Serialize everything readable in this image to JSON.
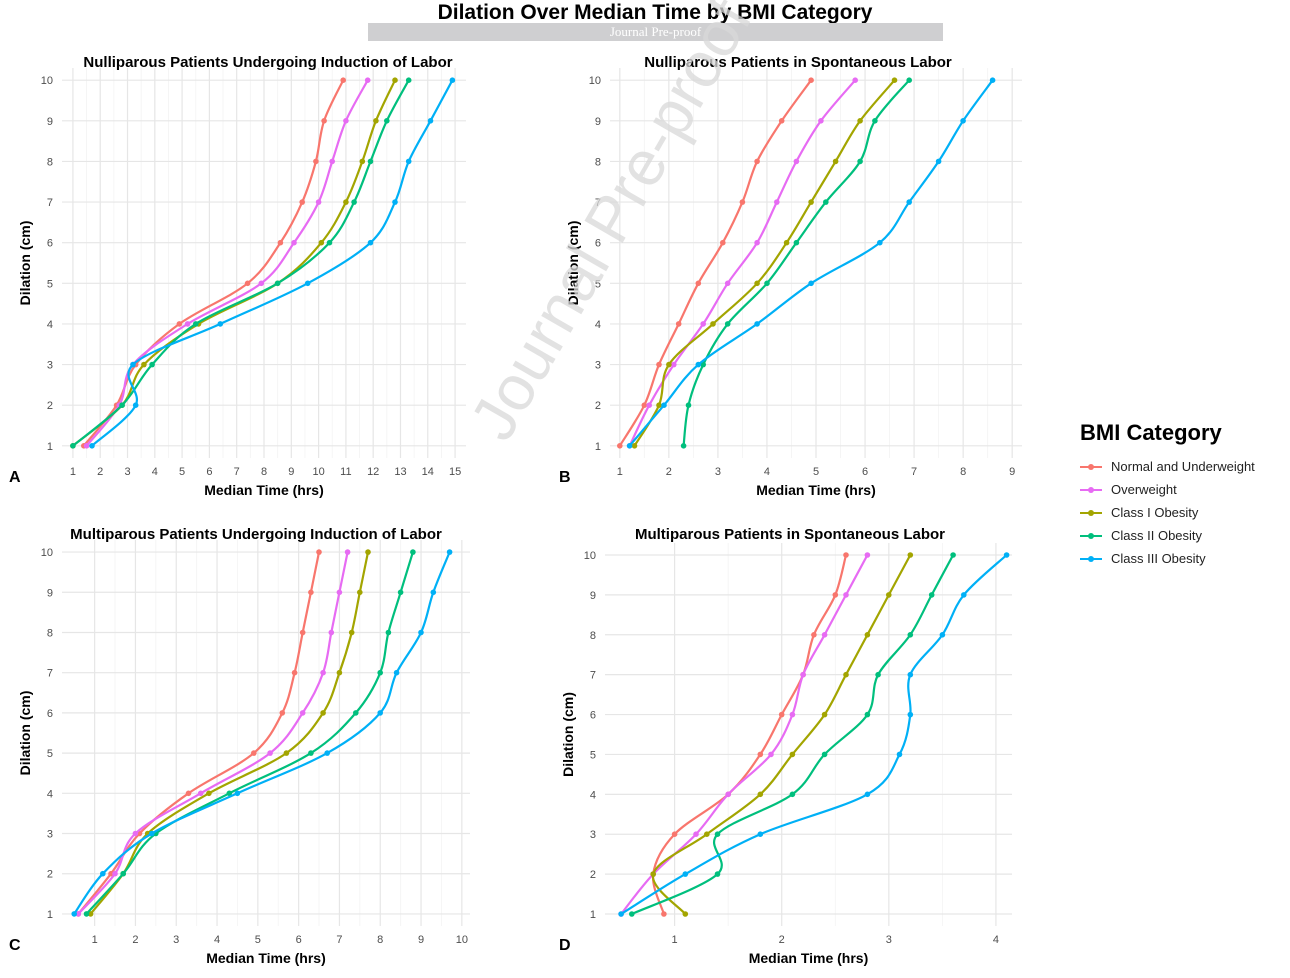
{
  "figure": {
    "title": "Dilation Over Median Time by BMI Category",
    "banner": "Journal Pre-proof",
    "watermark": "Journal Pre-proof"
  },
  "legend": {
    "title": "BMI Category",
    "items": [
      {
        "label": "Normal and Underweight",
        "color": "#f8766d"
      },
      {
        "label": "Overweight",
        "color": "#e76bf3"
      },
      {
        "label": "Class I Obesity",
        "color": "#a3a500"
      },
      {
        "label": "Class II Obesity",
        "color": "#00bf7d"
      },
      {
        "label": "Class III Obesity",
        "color": "#00b0f6"
      }
    ]
  },
  "chart_data": [
    {
      "panel": "A",
      "type": "line",
      "title": "Nulliparous Patients Undergoing Induction of Labor",
      "xlabel": "Median Time (hrs)",
      "ylabel": "Dilation (cm)",
      "xlim": [
        0.6,
        15.4
      ],
      "ylim": [
        0.7,
        10.3
      ],
      "xticks": [
        1,
        2,
        3,
        4,
        5,
        6,
        7,
        8,
        9,
        10,
        11,
        12,
        13,
        14,
        15
      ],
      "yticks": [
        1,
        2,
        3,
        4,
        5,
        6,
        7,
        8,
        9,
        10
      ],
      "series": [
        {
          "name": "Normal and Underweight",
          "points": [
            [
              1.4,
              1
            ],
            [
              2.6,
              2
            ],
            [
              3.3,
              3
            ],
            [
              4.9,
              4
            ],
            [
              7.4,
              5
            ],
            [
              8.6,
              6
            ],
            [
              9.4,
              7
            ],
            [
              9.9,
              8
            ],
            [
              10.2,
              9
            ],
            [
              10.9,
              10
            ]
          ]
        },
        {
          "name": "Overweight",
          "points": [
            [
              1.5,
              1
            ],
            [
              2.7,
              2
            ],
            [
              3.2,
              3
            ],
            [
              5.2,
              4
            ],
            [
              7.9,
              5
            ],
            [
              9.1,
              6
            ],
            [
              10.0,
              7
            ],
            [
              10.5,
              8
            ],
            [
              11.0,
              9
            ],
            [
              11.8,
              10
            ]
          ]
        },
        {
          "name": "Class I Obesity",
          "points": [
            [
              1.0,
              1
            ],
            [
              2.8,
              2
            ],
            [
              3.6,
              3
            ],
            [
              5.6,
              4
            ],
            [
              8.5,
              5
            ],
            [
              10.1,
              6
            ],
            [
              11.0,
              7
            ],
            [
              11.6,
              8
            ],
            [
              12.1,
              9
            ],
            [
              12.8,
              10
            ]
          ]
        },
        {
          "name": "Class II Obesity",
          "points": [
            [
              1.0,
              1
            ],
            [
              2.8,
              2
            ],
            [
              3.9,
              3
            ],
            [
              5.5,
              4
            ],
            [
              8.5,
              5
            ],
            [
              10.4,
              6
            ],
            [
              11.3,
              7
            ],
            [
              11.9,
              8
            ],
            [
              12.5,
              9
            ],
            [
              13.3,
              10
            ]
          ]
        },
        {
          "name": "Class III Obesity",
          "points": [
            [
              1.7,
              1
            ],
            [
              3.3,
              2
            ],
            [
              3.2,
              3
            ],
            [
              6.4,
              4
            ],
            [
              9.6,
              5
            ],
            [
              11.9,
              6
            ],
            [
              12.8,
              7
            ],
            [
              13.3,
              8
            ],
            [
              14.1,
              9
            ],
            [
              14.9,
              10
            ]
          ]
        }
      ]
    },
    {
      "panel": "B",
      "type": "line",
      "title": "Nulliparous Patients in Spontaneous Labor",
      "xlabel": "Median Time (hrs)",
      "ylabel": "Dilation (cm)",
      "xlim": [
        0.8,
        9.2
      ],
      "ylim": [
        0.7,
        10.3
      ],
      "xticks": [
        1,
        2,
        3,
        4,
        5,
        6,
        7,
        8,
        9
      ],
      "yticks": [
        1,
        2,
        3,
        4,
        5,
        6,
        7,
        8,
        9,
        10
      ],
      "series": [
        {
          "name": "Normal and Underweight",
          "points": [
            [
              1.0,
              1
            ],
            [
              1.5,
              2
            ],
            [
              1.8,
              3
            ],
            [
              2.2,
              4
            ],
            [
              2.6,
              5
            ],
            [
              3.1,
              6
            ],
            [
              3.5,
              7
            ],
            [
              3.8,
              8
            ],
            [
              4.3,
              9
            ],
            [
              4.9,
              10
            ]
          ]
        },
        {
          "name": "Overweight",
          "points": [
            [
              1.2,
              1
            ],
            [
              1.6,
              2
            ],
            [
              2.1,
              3
            ],
            [
              2.7,
              4
            ],
            [
              3.2,
              5
            ],
            [
              3.8,
              6
            ],
            [
              4.2,
              7
            ],
            [
              4.6,
              8
            ],
            [
              5.1,
              9
            ],
            [
              5.8,
              10
            ]
          ]
        },
        {
          "name": "Class I Obesity",
          "points": [
            [
              1.3,
              1
            ],
            [
              1.8,
              2
            ],
            [
              2.0,
              3
            ],
            [
              2.9,
              4
            ],
            [
              3.8,
              5
            ],
            [
              4.4,
              6
            ],
            [
              4.9,
              7
            ],
            [
              5.4,
              8
            ],
            [
              5.9,
              9
            ],
            [
              6.6,
              10
            ]
          ]
        },
        {
          "name": "Class II Obesity",
          "points": [
            [
              2.3,
              1
            ],
            [
              2.4,
              2
            ],
            [
              2.7,
              3
            ],
            [
              3.2,
              4
            ],
            [
              4.0,
              5
            ],
            [
              4.6,
              6
            ],
            [
              5.2,
              7
            ],
            [
              5.9,
              8
            ],
            [
              6.2,
              9
            ],
            [
              6.9,
              10
            ]
          ]
        },
        {
          "name": "Class III Obesity",
          "points": [
            [
              1.2,
              1
            ],
            [
              1.9,
              2
            ],
            [
              2.6,
              3
            ],
            [
              3.8,
              4
            ],
            [
              4.9,
              5
            ],
            [
              6.3,
              6
            ],
            [
              6.9,
              7
            ],
            [
              7.5,
              8
            ],
            [
              8.0,
              9
            ],
            [
              8.6,
              10
            ]
          ]
        }
      ]
    },
    {
      "panel": "C",
      "type": "line",
      "title": "Multiparous Patients Undergoing Induction of Labor",
      "xlabel": "Median Time (hrs)",
      "ylabel": "Dilation (cm)",
      "xlim": [
        0.2,
        10.2
      ],
      "ylim": [
        0.7,
        10.3
      ],
      "xticks": [
        1,
        2,
        3,
        4,
        5,
        6,
        7,
        8,
        9,
        10
      ],
      "yticks": [
        1,
        2,
        3,
        4,
        5,
        6,
        7,
        8,
        9,
        10
      ],
      "series": [
        {
          "name": "Normal and Underweight",
          "points": [
            [
              0.6,
              1
            ],
            [
              1.4,
              2
            ],
            [
              2.1,
              3
            ],
            [
              3.3,
              4
            ],
            [
              4.9,
              5
            ],
            [
              5.6,
              6
            ],
            [
              5.9,
              7
            ],
            [
              6.1,
              8
            ],
            [
              6.3,
              9
            ],
            [
              6.5,
              10
            ]
          ]
        },
        {
          "name": "Overweight",
          "points": [
            [
              0.6,
              1
            ],
            [
              1.5,
              2
            ],
            [
              2.0,
              3
            ],
            [
              3.6,
              4
            ],
            [
              5.3,
              5
            ],
            [
              6.1,
              6
            ],
            [
              6.6,
              7
            ],
            [
              6.8,
              8
            ],
            [
              7.0,
              9
            ],
            [
              7.2,
              10
            ]
          ]
        },
        {
          "name": "Class I Obesity",
          "points": [
            [
              0.9,
              1
            ],
            [
              1.7,
              2
            ],
            [
              2.3,
              3
            ],
            [
              3.8,
              4
            ],
            [
              5.7,
              5
            ],
            [
              6.6,
              6
            ],
            [
              7.0,
              7
            ],
            [
              7.3,
              8
            ],
            [
              7.5,
              9
            ],
            [
              7.7,
              10
            ]
          ]
        },
        {
          "name": "Class II Obesity",
          "points": [
            [
              0.8,
              1
            ],
            [
              1.7,
              2
            ],
            [
              2.5,
              3
            ],
            [
              4.3,
              4
            ],
            [
              6.3,
              5
            ],
            [
              7.4,
              6
            ],
            [
              8.0,
              7
            ],
            [
              8.2,
              8
            ],
            [
              8.5,
              9
            ],
            [
              8.8,
              10
            ]
          ]
        },
        {
          "name": "Class III Obesity",
          "points": [
            [
              0.5,
              1
            ],
            [
              1.2,
              2
            ],
            [
              2.4,
              3
            ],
            [
              4.5,
              4
            ],
            [
              6.7,
              5
            ],
            [
              8.0,
              6
            ],
            [
              8.4,
              7
            ],
            [
              9.0,
              8
            ],
            [
              9.3,
              9
            ],
            [
              9.7,
              10
            ]
          ]
        }
      ]
    },
    {
      "panel": "D",
      "type": "line",
      "title": "Multiparous Patients in Spontaneous Labor",
      "xlabel": "Median Time (hrs)",
      "ylabel": "Dilation (cm)",
      "xlim": [
        0.35,
        4.15
      ],
      "ylim": [
        0.7,
        10.3
      ],
      "xticks": [
        1,
        2,
        3,
        4
      ],
      "yticks": [
        1,
        2,
        3,
        4,
        5,
        6,
        7,
        8,
        9,
        10
      ],
      "series": [
        {
          "name": "Normal and Underweight",
          "points": [
            [
              0.9,
              1
            ],
            [
              0.8,
              2
            ],
            [
              1.0,
              3
            ],
            [
              1.5,
              4
            ],
            [
              1.8,
              5
            ],
            [
              2.0,
              6
            ],
            [
              2.2,
              7
            ],
            [
              2.3,
              8
            ],
            [
              2.5,
              9
            ],
            [
              2.6,
              10
            ]
          ]
        },
        {
          "name": "Overweight",
          "points": [
            [
              0.5,
              1
            ],
            [
              0.8,
              2
            ],
            [
              1.2,
              3
            ],
            [
              1.5,
              4
            ],
            [
              1.9,
              5
            ],
            [
              2.1,
              6
            ],
            [
              2.2,
              7
            ],
            [
              2.4,
              8
            ],
            [
              2.6,
              9
            ],
            [
              2.8,
              10
            ]
          ]
        },
        {
          "name": "Class I Obesity",
          "points": [
            [
              1.1,
              1
            ],
            [
              0.8,
              2
            ],
            [
              1.3,
              3
            ],
            [
              1.8,
              4
            ],
            [
              2.1,
              5
            ],
            [
              2.4,
              6
            ],
            [
              2.6,
              7
            ],
            [
              2.8,
              8
            ],
            [
              3.0,
              9
            ],
            [
              3.2,
              10
            ]
          ]
        },
        {
          "name": "Class II Obesity",
          "points": [
            [
              0.6,
              1
            ],
            [
              1.4,
              2
            ],
            [
              1.4,
              3
            ],
            [
              2.1,
              4
            ],
            [
              2.4,
              5
            ],
            [
              2.8,
              6
            ],
            [
              2.9,
              7
            ],
            [
              3.2,
              8
            ],
            [
              3.4,
              9
            ],
            [
              3.6,
              10
            ]
          ]
        },
        {
          "name": "Class III Obesity",
          "points": [
            [
              0.5,
              1
            ],
            [
              1.1,
              2
            ],
            [
              1.8,
              3
            ],
            [
              2.8,
              4
            ],
            [
              3.1,
              5
            ],
            [
              3.2,
              6
            ],
            [
              3.2,
              7
            ],
            [
              3.5,
              8
            ],
            [
              3.7,
              9
            ],
            [
              4.1,
              10
            ]
          ]
        }
      ]
    }
  ]
}
